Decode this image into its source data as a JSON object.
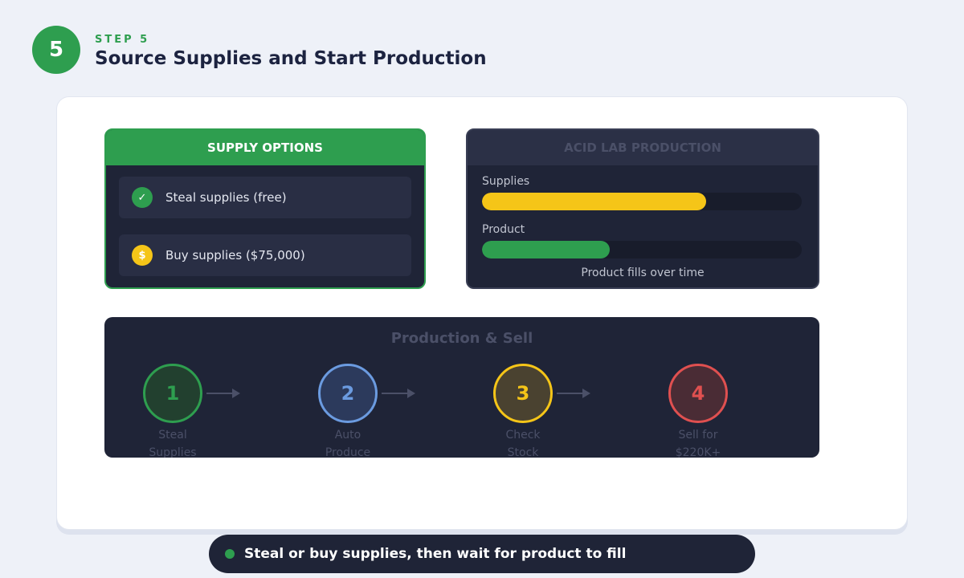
{
  "step": {
    "number": "5",
    "label": "STEP 5",
    "title": "Source Supplies and Start Production"
  },
  "supply_options": {
    "title": "SUPPLY OPTIONS",
    "items": [
      {
        "icon": "✓",
        "text": "Steal supplies (free)"
      },
      {
        "icon": "$",
        "text": "Buy supplies ($75,000)"
      }
    ]
  },
  "acid_lab": {
    "title": "ACID LAB PRODUCTION",
    "bars": [
      {
        "label": "Supplies",
        "value": 70
      },
      {
        "label": "Product",
        "value": 40
      }
    ],
    "note": "Product fills over time"
  },
  "production": {
    "title": "Production & Sell",
    "steps": [
      {
        "number": "1",
        "label": [
          "Steal",
          "Supplies"
        ]
      },
      {
        "number": "2",
        "label": [
          "Auto",
          "Produce"
        ]
      },
      {
        "number": "3",
        "label": [
          "Check",
          "Stock"
        ]
      },
      {
        "number": "4",
        "label": [
          "Sell for",
          "$220K+"
        ]
      }
    ]
  },
  "footer": "Steal or buy supplies, then wait for product to fill"
}
